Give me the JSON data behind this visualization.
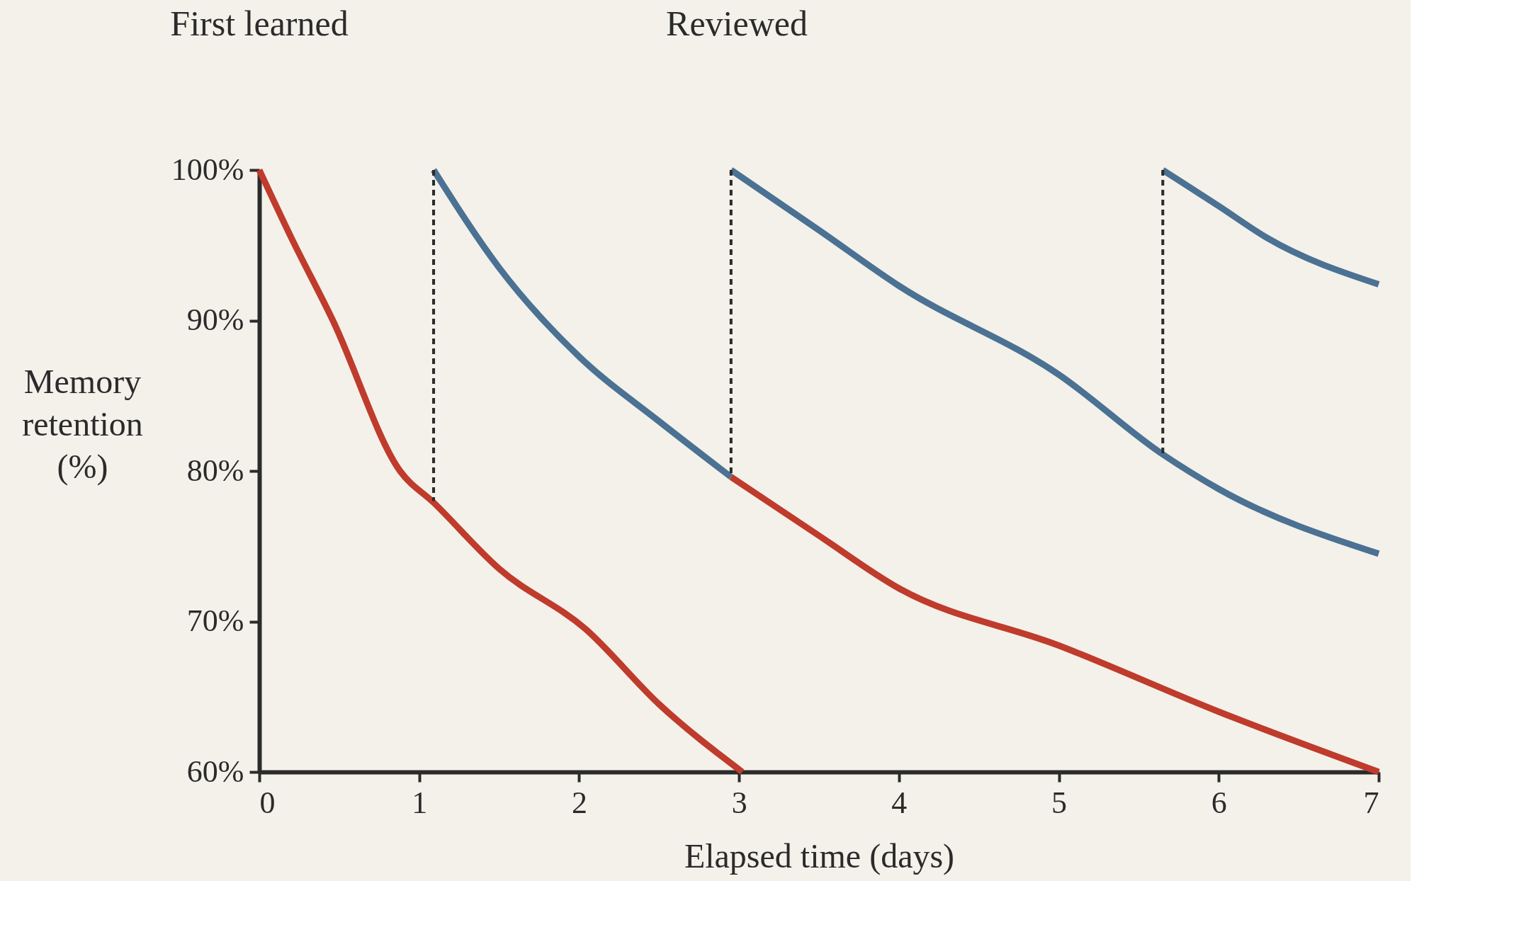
{
  "chart_data": {
    "type": "line",
    "xlabel": "Elapsed time (days)",
    "ylabel": "Memory retention (%)",
    "xlim": [
      0,
      7
    ],
    "xticks": [
      {
        "value": 0,
        "label": "0"
      },
      {
        "value": 1,
        "label": "1"
      },
      {
        "value": 2,
        "label": "2"
      },
      {
        "value": 3,
        "label": "3"
      },
      {
        "value": 4,
        "label": "4"
      },
      {
        "value": 5,
        "label": "5"
      },
      {
        "value": 6,
        "label": "6"
      },
      {
        "value": 7,
        "label": "7"
      }
    ],
    "ylim": [
      60,
      100
    ],
    "yticks": [
      {
        "value": 60,
        "label": "60%"
      },
      {
        "value": 70,
        "label": "70%"
      },
      {
        "value": 80,
        "label": "80%"
      },
      {
        "value": 90,
        "label": "90%"
      },
      {
        "value": 100,
        "label": "100%"
      }
    ],
    "grid": false,
    "marker": "none",
    "line_style": "solid",
    "series": [
      {
        "color": "#bf3b2c",
        "x": [
          0,
          0.2,
          0.46,
          0.88,
          1.09,
          1.5,
          2.04,
          2.5,
          3.02
        ],
        "values": [
          100,
          95.5,
          90,
          80,
          77.9,
          73.5,
          69.5,
          64.5,
          60
        ]
      },
      {
        "color": "#bf3b2c",
        "x": [
          2.95,
          3.5,
          4,
          5,
          6,
          7
        ],
        "values": [
          79.6,
          75.7,
          72.2,
          68.4,
          64,
          60
        ]
      },
      {
        "color": "#4b7193",
        "x": [
          1.09,
          1.5,
          2,
          2.5,
          2.95
        ],
        "values": [
          100,
          93.5,
          87.6,
          83.3,
          79.6
        ]
      },
      {
        "color": "#4b7193",
        "x": [
          2.95,
          3.5,
          4,
          5,
          5.65,
          6,
          7
        ],
        "values": [
          100,
          96,
          92.3,
          86.4,
          81.1,
          78.8,
          74.5
        ]
      },
      {
        "color": "#4b7193",
        "x": [
          5.65,
          6,
          6.3,
          7
        ],
        "values": [
          100,
          97.6,
          95.5,
          92.4
        ]
      },
      {
        "color": "#2b2b2b",
        "line_style": "dashed",
        "x": [
          1.09,
          1.09
        ],
        "values": [
          100,
          78
        ]
      },
      {
        "color": "#2b2b2b",
        "line_style": "dashed",
        "x": [
          2.95,
          2.95
        ],
        "values": [
          100,
          79.6
        ]
      },
      {
        "color": "#2b2b2b",
        "line_style": "dashed",
        "x": [
          5.65,
          5.65
        ],
        "values": [
          100,
          81.1
        ]
      }
    ],
    "annotations": [
      "First learned",
      "Reviewed"
    ]
  }
}
